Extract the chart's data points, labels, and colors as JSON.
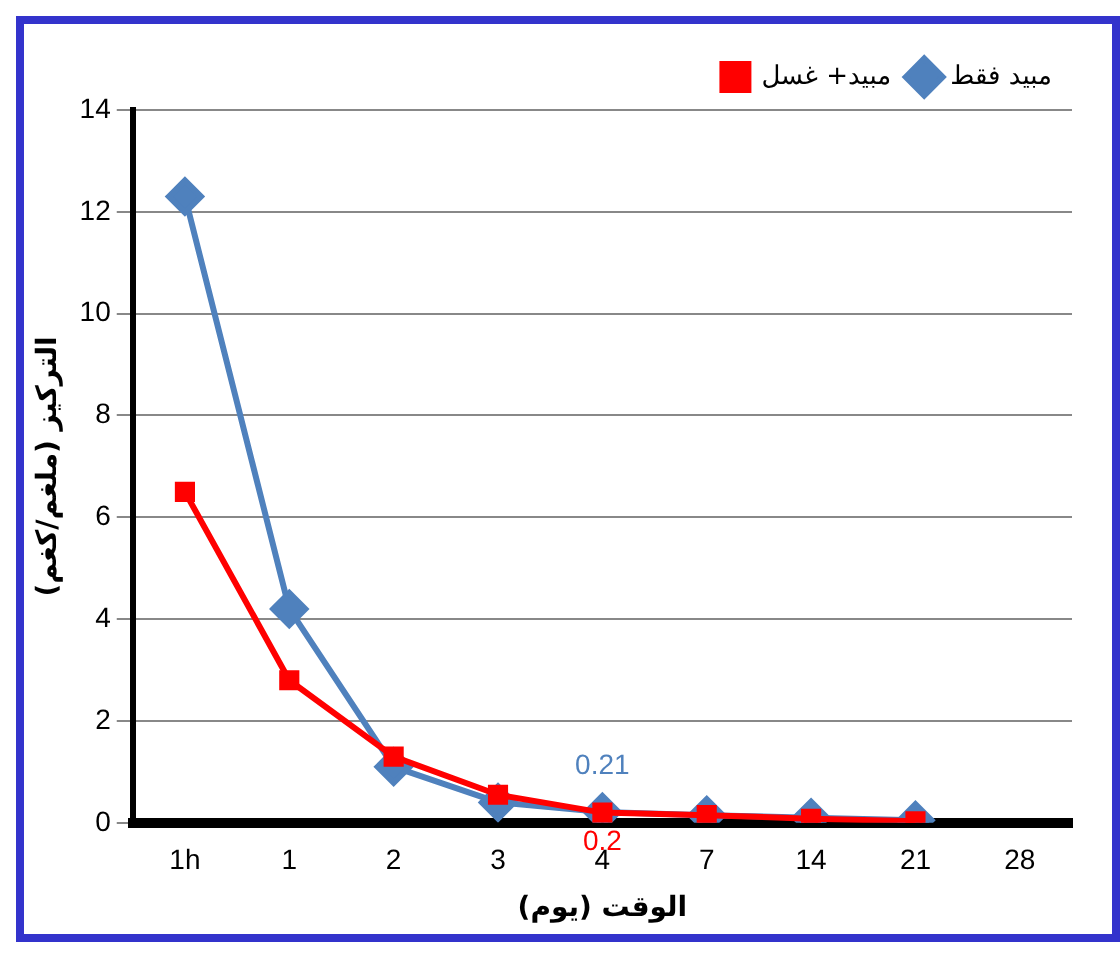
{
  "chart_data": {
    "type": "line",
    "xlabel": "الوقت (يوم)",
    "ylabel": "التركيز (ملغم/كغم)",
    "categories": [
      "1h",
      "1",
      "2",
      "3",
      "4",
      "7",
      "14",
      "21",
      "28"
    ],
    "series": [
      {
        "name": "مبيد فقط",
        "color": "#4f81bd",
        "marker": "diamond",
        "values": [
          12.3,
          4.2,
          1.1,
          0.4,
          0.21,
          0.15,
          0.1,
          0.05,
          null
        ],
        "value_labels": [
          null,
          null,
          null,
          null,
          "0.21",
          null,
          null,
          null,
          null
        ]
      },
      {
        "name": "مبيد+ غسل",
        "color": "#ff0000",
        "marker": "square",
        "values": [
          6.5,
          2.8,
          1.3,
          0.55,
          0.2,
          0.15,
          0.08,
          0.03,
          null
        ],
        "value_labels": [
          null,
          null,
          null,
          null,
          "0.2",
          null,
          null,
          null,
          null
        ]
      }
    ],
    "ylim": [
      0,
      14
    ],
    "yticks": [
      0,
      2,
      4,
      6,
      8,
      10,
      12,
      14
    ],
    "grid": "y",
    "legend": "top right"
  }
}
